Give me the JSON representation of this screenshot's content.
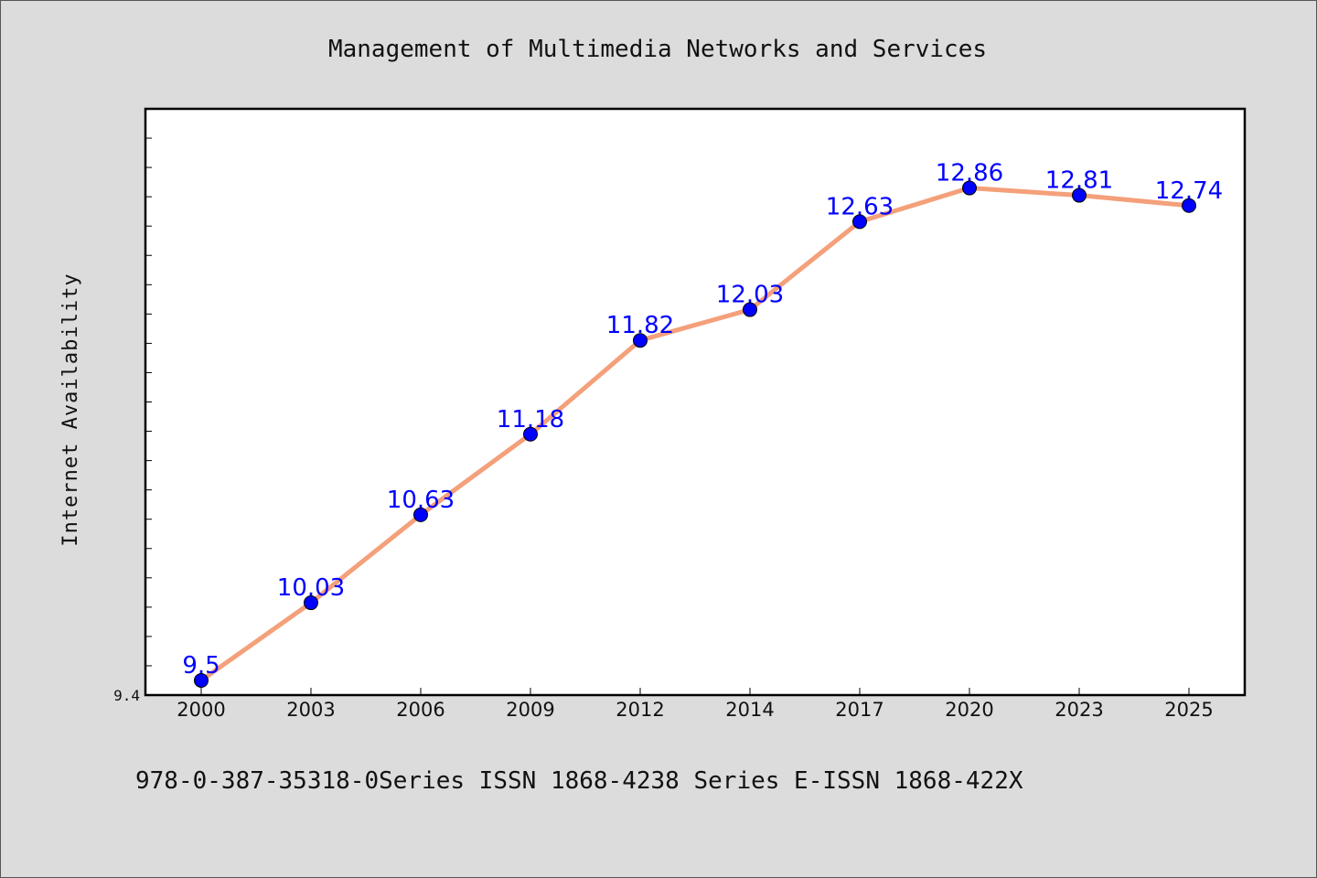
{
  "chart_data": {
    "type": "line",
    "title": "Management of Multimedia Networks and Services",
    "xlabel": "",
    "ylabel": "Internet Availability",
    "categories": [
      "2000",
      "2003",
      "2006",
      "2009",
      "2012",
      "2014",
      "2017",
      "2020",
      "2023",
      "2025"
    ],
    "series": [
      {
        "values": [
          9.5,
          10.03,
          10.63,
          11.18,
          11.82,
          12.03,
          12.63,
          12.86,
          12.81,
          12.74
        ],
        "labels": [
          "9.5",
          "10.03",
          "10.63",
          "11.18",
          "11.82",
          "12.03",
          "12.63",
          "12.86",
          "12.81",
          "12.74"
        ],
        "line_color": "#f4a07a",
        "marker_color": "#0000ff"
      }
    ],
    "ylim": [
      9.4,
      13.4
    ],
    "yticks": [
      "9.4"
    ],
    "grid": false,
    "legend": "none"
  },
  "footer": "978-0-387-35318-0Series ISSN 1868-4238 Series E-ISSN 1868-422X",
  "colors": {
    "background": "#dcdcdc",
    "plot_background": "#ffffff",
    "line": "#f4a07a",
    "marker": "#0000ff",
    "data_label": "#0000ff"
  }
}
